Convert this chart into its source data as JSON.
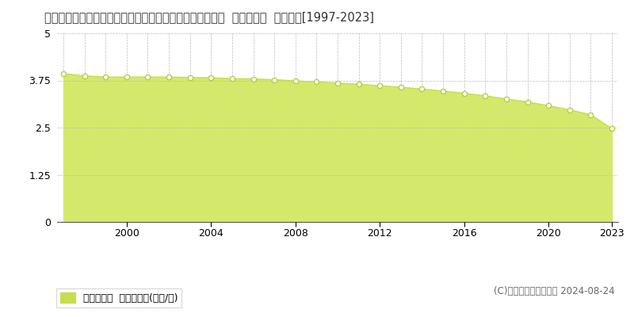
{
  "title": "秋田県南秋田郡五城目町富津内下山内字奈良崎４７番１１  基準地価格  地価推移[1997-2023]",
  "years": [
    1997,
    1998,
    1999,
    2000,
    2001,
    2002,
    2003,
    2004,
    2005,
    2006,
    2007,
    2008,
    2009,
    2010,
    2011,
    2012,
    2013,
    2014,
    2015,
    2016,
    2017,
    2018,
    2019,
    2020,
    2021,
    2022,
    2023
  ],
  "values": [
    3.93,
    3.87,
    3.84,
    3.84,
    3.84,
    3.84,
    3.83,
    3.82,
    3.8,
    3.79,
    3.77,
    3.74,
    3.71,
    3.68,
    3.65,
    3.61,
    3.57,
    3.52,
    3.47,
    3.41,
    3.34,
    3.26,
    3.18,
    3.08,
    2.97,
    2.84,
    2.47
  ],
  "ylim": [
    0,
    5
  ],
  "ytick_values": [
    0,
    1.25,
    2.5,
    3.75,
    5
  ],
  "ytick_labels": [
    "0",
    "1.25",
    "2.5",
    "3.75",
    "5"
  ],
  "xtick_years": [
    2000,
    2004,
    2008,
    2012,
    2016,
    2020,
    2023
  ],
  "fill_color": "#d4e96b",
  "line_color": "#c8dc50",
  "marker_facecolor": "#ffffff",
  "marker_edgecolor": "#b8cc40",
  "grid_color": "#bbbbbb",
  "background_color": "#ffffff",
  "legend_label": "基準地価格  平均坪単価(万円/坪)",
  "legend_square_color": "#c8dc50",
  "copyright_text": "(C)土地価格ドットコム 2024-08-24",
  "title_fontsize": 10.5,
  "axis_fontsize": 9,
  "legend_fontsize": 9,
  "copyright_fontsize": 8.5
}
